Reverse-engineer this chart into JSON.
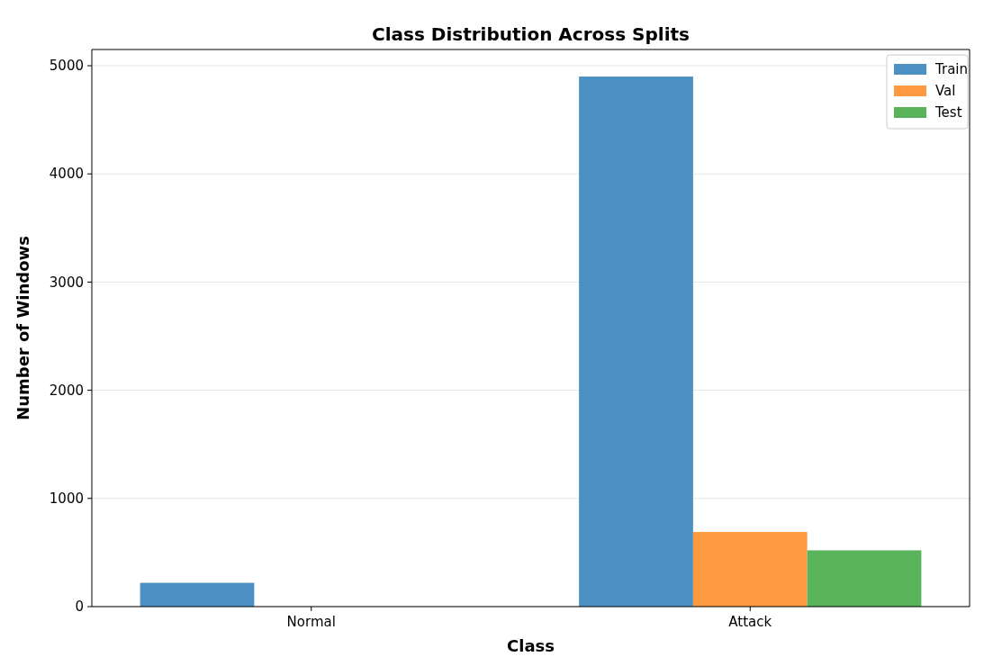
{
  "chart_data": {
    "type": "bar",
    "title": "Class Distribution Across Splits",
    "xlabel": "Class",
    "ylabel": "Number of Windows",
    "categories": [
      "Normal",
      "Attack"
    ],
    "series": [
      {
        "name": "Train",
        "color": "#4c91c3",
        "values": [
          220,
          4900
        ]
      },
      {
        "name": "Val",
        "color": "#fd9a40",
        "values": [
          0,
          690
        ]
      },
      {
        "name": "Test",
        "color": "#58b35a",
        "values": [
          0,
          520
        ]
      }
    ],
    "ylim": [
      0,
      5150
    ],
    "yticks": [
      0,
      1000,
      2000,
      3000,
      4000,
      5000
    ],
    "grid": "y",
    "legend": "top right"
  }
}
